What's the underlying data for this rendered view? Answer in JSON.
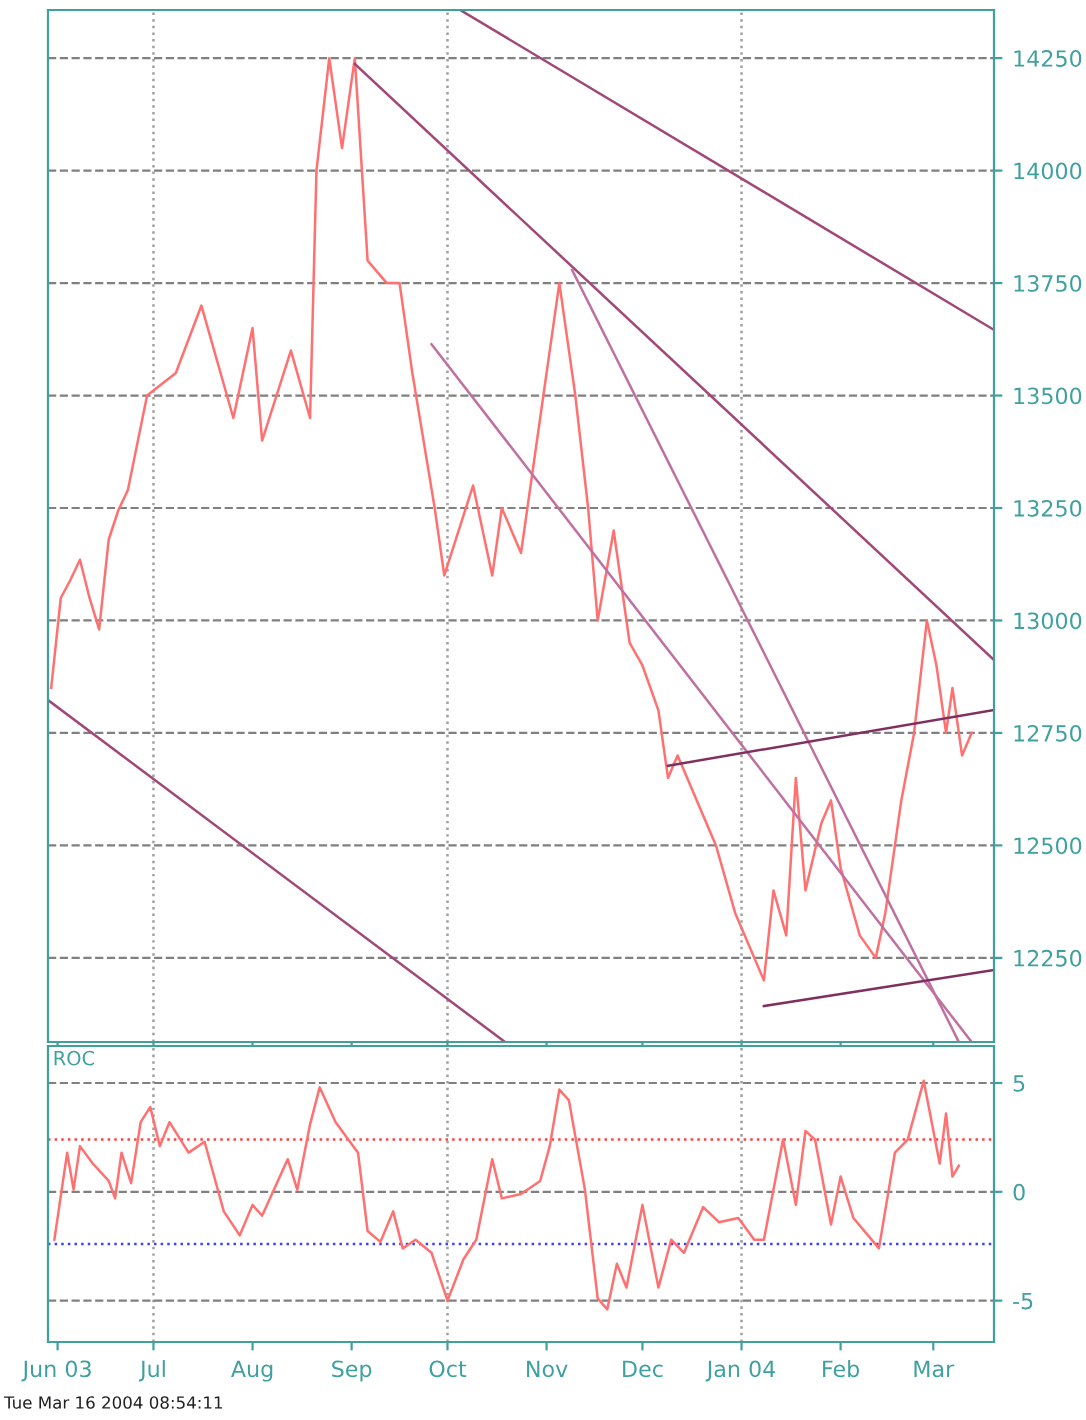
{
  "chart_data": [
    {
      "type": "line",
      "xlim": [
        "2003-05-29",
        "2004-03-20"
      ],
      "ylim": [
        12063,
        14357
      ],
      "yticks": [
        12250,
        12500,
        12750,
        13000,
        13250,
        13500,
        13750,
        14000,
        14250
      ],
      "tick_labels": "y",
      "grid": "y",
      "xticks": [
        {
          "value": "2003-06-01",
          "label": null
        },
        {
          "value": "2003-07-01",
          "label": null
        },
        {
          "value": "2003-08-01",
          "label": null
        },
        {
          "value": "2003-09-01",
          "label": null
        },
        {
          "value": "2003-10-01",
          "label": null
        },
        {
          "value": "2003-11-01",
          "label": null
        },
        {
          "value": "2003-12-01",
          "label": null
        },
        {
          "value": "2004-01-01",
          "label": null
        },
        {
          "value": "2004-02-01",
          "label": null
        },
        {
          "value": "2004-03-01",
          "label": null
        }
      ],
      "ref_lines": [
        {
          "axis": "x",
          "value": "2003-07-01",
          "color": "#a0a0a0",
          "line_style": "dotted"
        },
        {
          "axis": "x",
          "value": "2003-10-01",
          "color": "#a0a0a0",
          "line_style": "dotted"
        },
        {
          "axis": "x",
          "value": "2004-01-01",
          "color": "#a0a0a0",
          "line_style": "dotted"
        }
      ],
      "series": [
        {
          "color": "#ff7070",
          "x": [
            "2003-05-30",
            "2003-06-02",
            "2003-06-05",
            "2003-06-08",
            "2003-06-11",
            "2003-06-14",
            "2003-06-17",
            "2003-06-20",
            "2003-06-23",
            "2003-06-29",
            "2003-07-08",
            "2003-07-16",
            "2003-07-26",
            "2003-08-01",
            "2003-08-04",
            "2003-08-13",
            "2003-08-19",
            "2003-08-21",
            "2003-08-25",
            "2003-08-29",
            "2003-09-02",
            "2003-09-06",
            "2003-09-12",
            "2003-09-16",
            "2003-09-20",
            "2003-09-27",
            "2003-09-30",
            "2003-10-09",
            "2003-10-15",
            "2003-10-18",
            "2003-10-24",
            "2003-10-30",
            "2003-11-05",
            "2003-11-10",
            "2003-11-14",
            "2003-11-17",
            "2003-11-22",
            "2003-11-27",
            "2003-12-01",
            "2003-12-06",
            "2003-12-09",
            "2003-12-12",
            "2003-12-18",
            "2003-12-24",
            "2003-12-30",
            "2004-01-08",
            "2004-01-11",
            "2004-01-15",
            "2004-01-18",
            "2004-01-21",
            "2004-01-26",
            "2004-01-29",
            "2004-02-01",
            "2004-02-07",
            "2004-02-12",
            "2004-02-15",
            "2004-02-20",
            "2004-02-24",
            "2004-02-28",
            "2004-03-02",
            "2004-03-05",
            "2004-03-07",
            "2004-03-10",
            "2004-03-13"
          ],
          "values": [
            12850,
            13050,
            13090,
            13135,
            13050,
            12980,
            13180,
            13245,
            13290,
            13500,
            13550,
            13700,
            13450,
            13650,
            13400,
            13600,
            13450,
            14000,
            14250,
            14050,
            14250,
            13800,
            13750,
            13750,
            13550,
            13250,
            13100,
            13300,
            13100,
            13250,
            13150,
            13450,
            13750,
            13500,
            13250,
            13000,
            13200,
            12950,
            12900,
            12800,
            12650,
            12700,
            12600,
            12500,
            12350,
            12200,
            12400,
            12300,
            12650,
            12400,
            12550,
            12600,
            12450,
            12300,
            12250,
            12350,
            12600,
            12750,
            13000,
            12900,
            12750,
            12850,
            12700,
            12750
          ]
        },
        {
          "color": "#a04878",
          "x": [
            "2003-09-02",
            "2004-03-20"
          ],
          "values": [
            14237,
            12912
          ]
        },
        {
          "color": "#a04878",
          "x": [
            "2003-10-05",
            "2004-03-20"
          ],
          "values": [
            14357,
            13646
          ]
        },
        {
          "color": "#c070a0",
          "x": [
            "2003-09-26",
            "2004-03-13"
          ],
          "values": [
            13614,
            12063
          ]
        },
        {
          "color": "#c070a0",
          "x": [
            "2003-11-09",
            "2004-03-09"
          ],
          "values": [
            13779,
            12063
          ]
        },
        {
          "color": "#803060",
          "x": [
            "2003-12-09",
            "2004-03-20"
          ],
          "values": [
            12677,
            12801
          ]
        },
        {
          "color": "#803060",
          "x": [
            "2004-01-08",
            "2004-03-20"
          ],
          "values": [
            12143,
            12223
          ]
        },
        {
          "color": "#a04878",
          "x": [
            "2003-05-29",
            "2003-10-19"
          ],
          "values": [
            12823,
            12063
          ]
        }
      ]
    },
    {
      "type": "line",
      "title": "ROC",
      "xlim": [
        "2003-05-29",
        "2004-03-20"
      ],
      "ylim": [
        -6.9,
        6.7
      ],
      "yticks": [
        -5,
        0,
        5
      ],
      "grid": "y",
      "xticks": [
        {
          "value": "2003-06-01",
          "label": "Jun 03"
        },
        {
          "value": "2003-07-01",
          "label": "Jul"
        },
        {
          "value": "2003-08-01",
          "label": "Aug"
        },
        {
          "value": "2003-09-01",
          "label": "Sep"
        },
        {
          "value": "2003-10-01",
          "label": "Oct"
        },
        {
          "value": "2003-11-01",
          "label": "Nov"
        },
        {
          "value": "2003-12-01",
          "label": "Dec"
        },
        {
          "value": "2004-01-01",
          "label": "Jan 04"
        },
        {
          "value": "2004-02-01",
          "label": "Feb"
        },
        {
          "value": "2004-03-01",
          "label": "Mar"
        }
      ],
      "ref_lines": [
        {
          "axis": "y",
          "value": 2.4,
          "color": "#ff4040",
          "line_style": "dotted"
        },
        {
          "axis": "y",
          "value": -2.4,
          "color": "#4040ff",
          "line_style": "dotted"
        },
        {
          "axis": "x",
          "value": "2003-07-01",
          "color": "#a0a0a0",
          "line_style": "dotted"
        },
        {
          "axis": "x",
          "value": "2003-10-01",
          "color": "#a0a0a0",
          "line_style": "dotted"
        },
        {
          "axis": "x",
          "value": "2004-01-01",
          "color": "#a0a0a0",
          "line_style": "dotted"
        }
      ],
      "annotations": [
        "Tue Mar 16 2004 08:54:11"
      ],
      "series": [
        {
          "color": "#ff7070",
          "x": [
            "2003-05-31",
            "2003-06-04",
            "2003-06-06",
            "2003-06-08",
            "2003-06-12",
            "2003-06-17",
            "2003-06-19",
            "2003-06-21",
            "2003-06-24",
            "2003-06-27",
            "2003-06-30",
            "2003-07-03",
            "2003-07-06",
            "2003-07-12",
            "2003-07-17",
            "2003-07-23",
            "2003-07-28",
            "2003-08-01",
            "2003-08-04",
            "2003-08-12",
            "2003-08-15",
            "2003-08-19",
            "2003-08-22",
            "2003-08-27",
            "2003-09-03",
            "2003-09-06",
            "2003-09-10",
            "2003-09-14",
            "2003-09-17",
            "2003-09-21",
            "2003-09-26",
            "2003-10-01",
            "2003-10-06",
            "2003-10-10",
            "2003-10-15",
            "2003-10-18",
            "2003-10-24",
            "2003-10-30",
            "2003-11-02",
            "2003-11-05",
            "2003-11-08",
            "2003-11-13",
            "2003-11-17",
            "2003-11-20",
            "2003-11-23",
            "2003-11-26",
            "2003-12-01",
            "2003-12-06",
            "2003-12-10",
            "2003-12-14",
            "2003-12-20",
            "2003-12-25",
            "2003-12-31",
            "2004-01-05",
            "2004-01-08",
            "2004-01-14",
            "2004-01-18",
            "2004-01-21",
            "2004-01-24",
            "2004-01-29",
            "2004-02-01",
            "2004-02-05",
            "2004-02-13",
            "2004-02-18",
            "2004-02-22",
            "2004-02-27",
            "2004-03-03",
            "2004-03-05",
            "2004-03-07",
            "2004-03-09"
          ],
          "values": [
            -2.2,
            1.8,
            0.1,
            2.1,
            1.3,
            0.5,
            -0.3,
            1.8,
            0.4,
            3.2,
            3.9,
            2.1,
            3.2,
            1.8,
            2.3,
            -0.9,
            -2.0,
            -0.6,
            -1.1,
            1.5,
            0.1,
            3.1,
            4.8,
            3.2,
            1.8,
            -1.8,
            -2.3,
            -0.9,
            -2.6,
            -2.2,
            -2.8,
            -5.0,
            -3.1,
            -2.2,
            1.5,
            -0.3,
            -0.1,
            0.5,
            2.1,
            4.7,
            4.2,
            0.1,
            -4.9,
            -5.4,
            -3.3,
            -4.4,
            -0.6,
            -4.4,
            -2.2,
            -2.8,
            -0.7,
            -1.4,
            -1.2,
            -2.2,
            -2.2,
            2.4,
            -0.6,
            2.8,
            2.4,
            -1.5,
            0.7,
            -1.2,
            -2.6,
            1.8,
            2.4,
            5.1,
            1.3,
            3.6,
            0.7,
            1.2
          ]
        }
      ]
    }
  ]
}
